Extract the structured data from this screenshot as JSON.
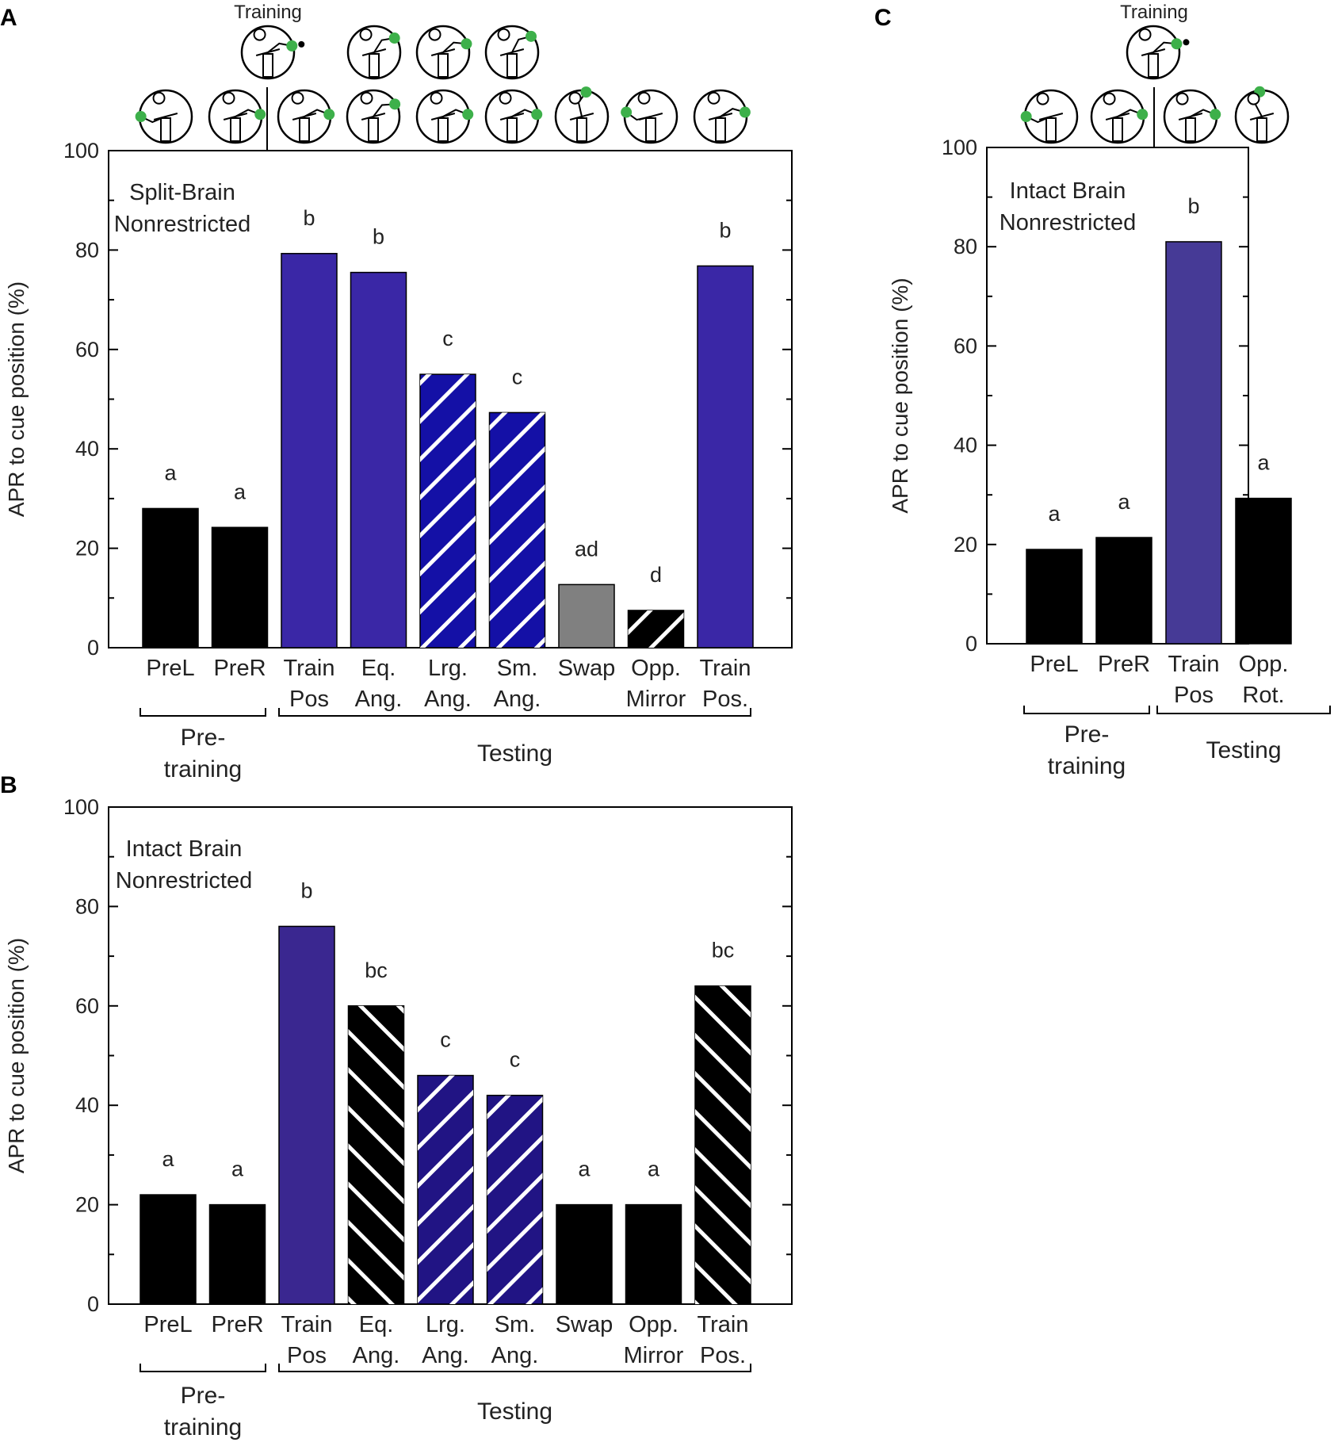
{
  "figure": {
    "panels": [
      "A",
      "B",
      "C"
    ],
    "training_label": "Training"
  },
  "colors": {
    "black": "#000000",
    "blue_a": "#3a27a6",
    "blue_hatched": "#1410a6",
    "gray": "#808080",
    "blue_b": "#3a2790",
    "blue_b_hatched": "#211484",
    "blue_c": "#463a96",
    "green_dot": "#3db04a",
    "hatch_line": "#ffffff"
  },
  "chart_data": [
    {
      "id": "A",
      "type": "bar",
      "ylabel": "APR to cue position (%)",
      "ylim": [
        0,
        100
      ],
      "yticks": [
        0,
        20,
        40,
        60,
        80,
        100
      ],
      "inset_label": [
        "Split-Brain",
        "Nonrestricted"
      ],
      "categories": [
        [
          "PreL"
        ],
        [
          "PreR"
        ],
        [
          "Train",
          "Pos"
        ],
        [
          "Eq.",
          "Ang."
        ],
        [
          "Lrg.",
          "Ang."
        ],
        [
          "Sm.",
          "Ang."
        ],
        [
          "Swap"
        ],
        [
          "Opp.",
          "Mirror"
        ],
        [
          "Train",
          "Pos."
        ]
      ],
      "values": [
        28,
        24.2,
        79.3,
        75.5,
        55,
        47.3,
        12.7,
        7.5,
        76.8
      ],
      "significance": [
        "a",
        "a",
        "b",
        "b",
        "c",
        "c",
        "ad",
        "d",
        "b"
      ],
      "fills": [
        "black",
        "black",
        "blue_a",
        "blue_a",
        "blue_hatched",
        "blue_hatched",
        "gray",
        "black",
        "blue_a"
      ],
      "hatched": [
        false,
        false,
        false,
        false,
        true,
        true,
        false,
        true,
        false
      ],
      "groups": [
        {
          "label": [
            "Pre-",
            "training"
          ],
          "from": 0,
          "to": 1
        },
        {
          "label": [
            "Testing"
          ],
          "from": 2,
          "to": 8
        }
      ]
    },
    {
      "id": "B",
      "type": "bar",
      "ylabel": "APR to cue position (%)",
      "ylim": [
        0,
        100
      ],
      "yticks": [
        0,
        20,
        40,
        60,
        80,
        100
      ],
      "inset_label": [
        "Intact Brain",
        "Nonrestricted"
      ],
      "categories": [
        [
          "PreL"
        ],
        [
          "PreR"
        ],
        [
          "Train",
          "Pos"
        ],
        [
          "Eq.",
          "Ang."
        ],
        [
          "Lrg.",
          "Ang."
        ],
        [
          "Sm.",
          "Ang."
        ],
        [
          "Swap"
        ],
        [
          "Opp.",
          "Mirror"
        ],
        [
          "Train",
          "Pos."
        ]
      ],
      "values": [
        22,
        20,
        76,
        60,
        46,
        42,
        20,
        20,
        64
      ],
      "significance": [
        "a",
        "a",
        "b",
        "bc",
        "c",
        "c",
        "a",
        "a",
        "bc"
      ],
      "fills": [
        "black",
        "black",
        "blue_b",
        "black",
        "blue_b_hatched",
        "blue_b_hatched",
        "black",
        "black",
        "black"
      ],
      "hatched": [
        false,
        false,
        false,
        true,
        true,
        true,
        false,
        false,
        true
      ],
      "groups": [
        {
          "label": [
            "Pre-",
            "training"
          ],
          "from": 0,
          "to": 1
        },
        {
          "label": [
            "Testing"
          ],
          "from": 2,
          "to": 8
        }
      ]
    },
    {
      "id": "C",
      "type": "bar",
      "ylabel": "APR to cue position (%)",
      "ylim": [
        0,
        100
      ],
      "yticks": [
        0,
        20,
        40,
        60,
        80,
        100
      ],
      "inset_label": [
        "Intact Brain",
        "Nonrestricted"
      ],
      "categories": [
        [
          "PreL"
        ],
        [
          "PreR"
        ],
        [
          "Train",
          "Pos"
        ],
        [
          "Opp.",
          "Rot."
        ]
      ],
      "values": [
        19,
        21.4,
        81,
        29.3
      ],
      "significance": [
        "a",
        "a",
        "b",
        "a"
      ],
      "fills": [
        "black",
        "black",
        "blue_c",
        "black"
      ],
      "hatched": [
        false,
        false,
        false,
        false
      ],
      "groups": [
        {
          "label": [
            "Pre-",
            "training"
          ],
          "from": 0,
          "to": 1
        },
        {
          "label": [
            "Testing"
          ],
          "from": 2,
          "to": 3
        }
      ]
    }
  ]
}
